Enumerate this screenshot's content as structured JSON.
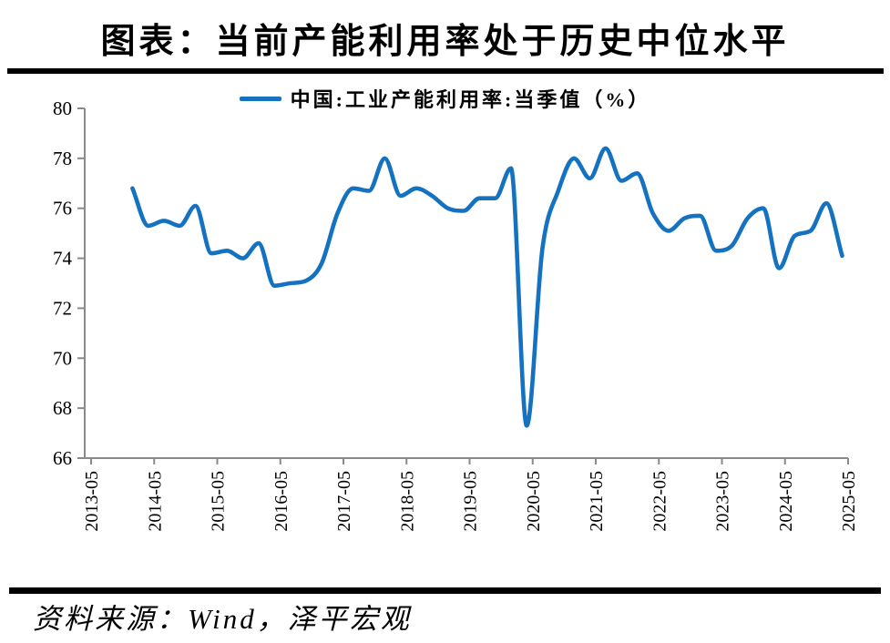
{
  "page": {
    "title": "图表：当前产能利用率处于历史中位水平",
    "source_note": "资料来源：Wind，泽平宏观"
  },
  "chart_data": {
    "type": "line",
    "title": "图表：当前产能利用率处于历史中位水平",
    "xlabel": "",
    "ylabel": "",
    "ylim": [
      66,
      80
    ],
    "yticks": [
      66,
      68,
      70,
      72,
      74,
      76,
      78,
      80
    ],
    "xticks": [
      "2013-05",
      "2014-05",
      "2015-05",
      "2016-05",
      "2017-05",
      "2018-05",
      "2019-05",
      "2020-05",
      "2021-05",
      "2022-05",
      "2023-05",
      "2024-05",
      "2025-05"
    ],
    "grid": false,
    "legend_position": "top",
    "line_color": "#1472C0",
    "axis_color": "#8A8A8A",
    "series": [
      {
        "name": "中国:工业产能利用率:当季值（%）",
        "x": [
          "2013-12",
          "2014-03",
          "2014-06",
          "2014-09",
          "2014-12",
          "2015-03",
          "2015-06",
          "2015-09",
          "2015-12",
          "2016-03",
          "2016-06",
          "2016-09",
          "2016-12",
          "2017-03",
          "2017-06",
          "2017-09",
          "2017-12",
          "2018-03",
          "2018-06",
          "2018-09",
          "2018-12",
          "2019-03",
          "2019-06",
          "2019-09",
          "2019-12",
          "2020-03",
          "2020-06",
          "2020-09",
          "2020-12",
          "2021-03",
          "2021-06",
          "2021-09",
          "2021-12",
          "2022-03",
          "2022-06",
          "2022-09",
          "2022-12",
          "2023-03",
          "2023-06",
          "2023-09",
          "2023-12",
          "2024-03",
          "2024-06",
          "2024-09",
          "2024-12",
          "2025-03"
        ],
        "values": [
          76.8,
          75.3,
          75.5,
          75.3,
          76.1,
          74.2,
          74.3,
          74.0,
          74.6,
          72.9,
          73.0,
          73.1,
          73.8,
          75.8,
          76.8,
          76.7,
          78.0,
          76.5,
          76.8,
          76.5,
          76.0,
          75.9,
          76.4,
          76.4,
          77.6,
          67.3,
          74.4,
          76.7,
          78.0,
          77.2,
          78.4,
          77.1,
          77.4,
          75.8,
          75.1,
          75.6,
          75.7,
          74.3,
          74.5,
          75.6,
          76.0,
          73.6,
          74.9,
          75.1,
          76.2,
          74.1
        ]
      }
    ]
  }
}
